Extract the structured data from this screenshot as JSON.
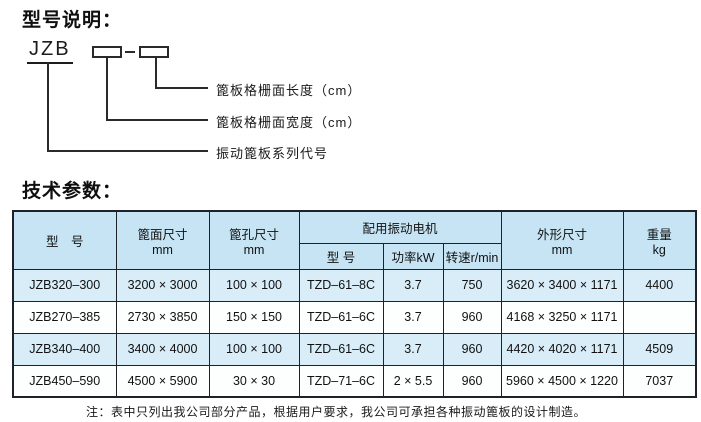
{
  "page": {
    "section1_title": "型号说明：",
    "section2_title": "技术参数：",
    "note": "注：表中只列出我公司部分产品，根据用户要求，我公司可承担各种振动篦板的设计制造。"
  },
  "diagram": {
    "series_code": "JZB",
    "labels": [
      "篦板格栅面长度（cm）",
      "篦板格栅面宽度（cm）",
      "振动篦板系列代号"
    ]
  },
  "table": {
    "headers": {
      "model": "型　号",
      "screen_size": "篦面尺寸\nmm",
      "hole_size": "篦孔尺寸\nmm",
      "motor_group": "配用振动电机",
      "motor_model": "型 号",
      "motor_power": "功率kW",
      "motor_speed": "转速r/min",
      "overall_size": "外形尺寸\nmm",
      "weight": "重量\nkg"
    },
    "rows": [
      [
        "JZB320–300",
        "3200 × 3000",
        "100 × 100",
        "TZD–61–8C",
        "3.7",
        "750",
        "3620 × 3400 × 1171",
        "4400"
      ],
      [
        "JZB270–385",
        "2730 × 3850",
        "150 × 150",
        "TZD–61–6C",
        "3.7",
        "960",
        "4168 × 3250 × 1171",
        ""
      ],
      [
        "JZB340–400",
        "3400 × 4000",
        "100 × 100",
        "TZD–61–6C",
        "3.7",
        "960",
        "4420 × 4020 × 1171",
        "4509"
      ],
      [
        "JZB450–590",
        "4500 × 5900",
        "30 × 30",
        "TZD–71–6C",
        "2 × 5.5",
        "960",
        "5960 × 4500 × 1220",
        "7037"
      ]
    ]
  },
  "colors": {
    "header_bg": "#c6e4f4",
    "alt_row_bg": "#d9edf8",
    "row_bg": "#fdfefe",
    "border": "#1e2228",
    "text": "#111111"
  }
}
